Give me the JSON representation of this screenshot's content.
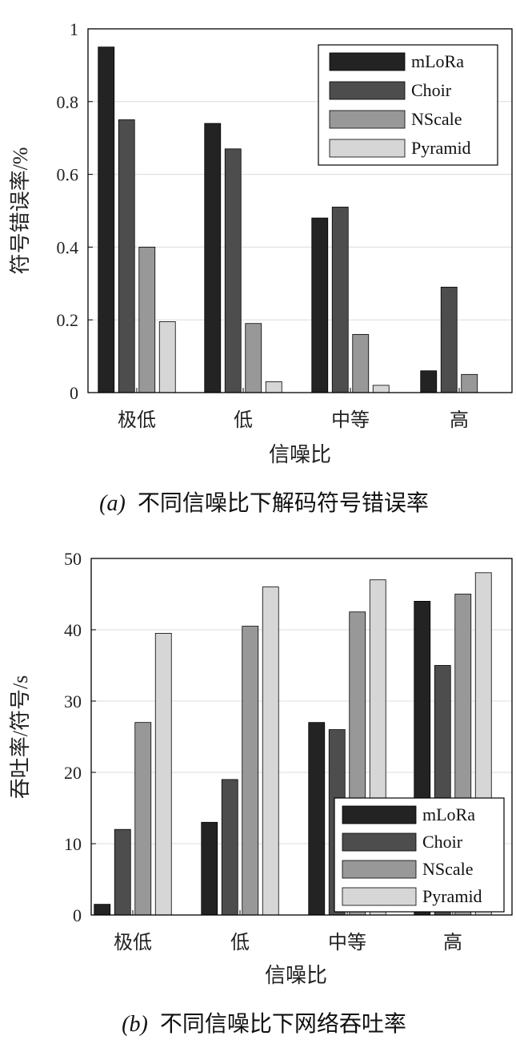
{
  "legend_items": [
    {
      "label": "mLoRa",
      "color": "#232323"
    },
    {
      "label": "Choir",
      "color": "#4d4d4d"
    },
    {
      "label": "NScale",
      "color": "#989898"
    },
    {
      "label": "Pyramid",
      "color": "#d6d6d6"
    }
  ],
  "chart_data": [
    {
      "type": "bar",
      "categories": [
        "极低",
        "低",
        "中等",
        "高"
      ],
      "series": [
        {
          "name": "mLoRa",
          "values": [
            0.95,
            0.74,
            0.48,
            0.06
          ]
        },
        {
          "name": "Choir",
          "values": [
            0.75,
            0.67,
            0.51,
            0.29
          ]
        },
        {
          "name": "NScale",
          "values": [
            0.4,
            0.19,
            0.16,
            0.05
          ]
        },
        {
          "name": "Pyramid",
          "values": [
            0.195,
            0.03,
            0.02,
            0.0
          ]
        }
      ],
      "xlabel": "信噪比",
      "ylabel": "符号错误率/%",
      "ylim": [
        0,
        1
      ],
      "yticks": [
        "0",
        "0.2",
        "0.4",
        "0.6",
        "0.8",
        "1"
      ],
      "grid": true,
      "legend_position": "top-right",
      "caption_tag": "(a)",
      "caption": "不同信噪比下解码符号错误率"
    },
    {
      "type": "bar",
      "categories": [
        "极低",
        "低",
        "中等",
        "高"
      ],
      "series": [
        {
          "name": "mLoRa",
          "values": [
            1.5,
            13,
            27,
            44
          ]
        },
        {
          "name": "Choir",
          "values": [
            12,
            19,
            26,
            35
          ]
        },
        {
          "name": "NScale",
          "values": [
            27,
            40.5,
            42.5,
            45
          ]
        },
        {
          "name": "Pyramid",
          "values": [
            39.5,
            46,
            47,
            48
          ]
        }
      ],
      "xlabel": "信噪比",
      "ylabel": "吞吐率/符号/s",
      "ylim": [
        0,
        50
      ],
      "yticks": [
        "0",
        "10",
        "20",
        "30",
        "40",
        "50"
      ],
      "grid": true,
      "legend_position": "bottom-right",
      "caption_tag": "(b)",
      "caption": "不同信噪比下网络吞吐率"
    }
  ]
}
